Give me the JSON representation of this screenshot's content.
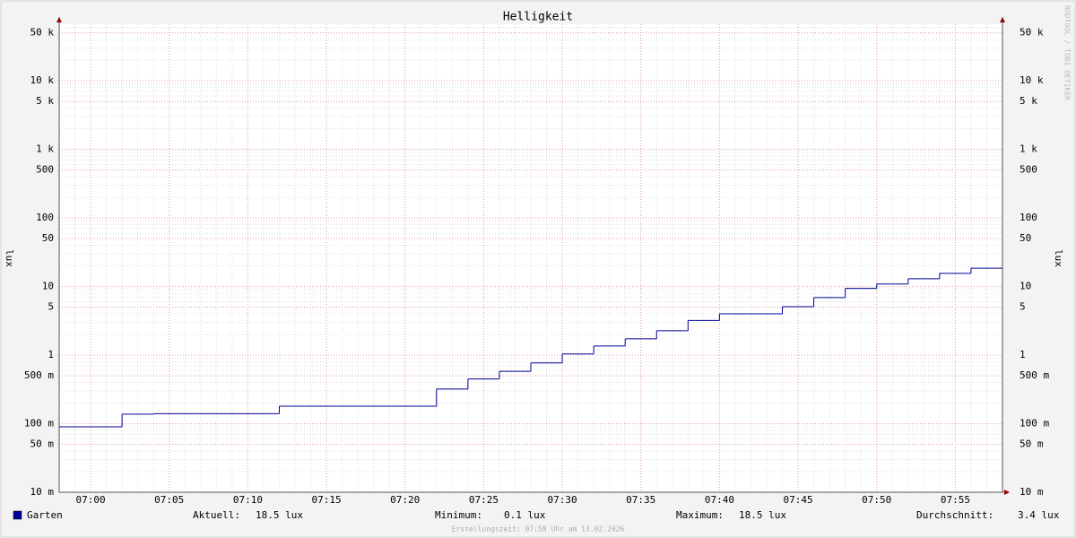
{
  "chart_data": {
    "type": "step",
    "title": "Helligkeit",
    "y_label": "lux",
    "watermark": "RRDTOOL / TOBI OETIKER",
    "log_y": true,
    "grid": true,
    "x": [
      "06:58",
      "07:02",
      "07:04",
      "07:12",
      "07:22",
      "07:24",
      "07:26",
      "07:28",
      "07:30",
      "07:32",
      "07:34",
      "07:36",
      "07:38",
      "07:40",
      "07:44",
      "07:46",
      "07:48",
      "07:50",
      "07:52",
      "07:54",
      "07:56"
    ],
    "xlim": [
      "06:58",
      "07:58"
    ],
    "xticks": [
      "07:00",
      "07:05",
      "07:10",
      "07:15",
      "07:20",
      "07:25",
      "07:30",
      "07:35",
      "07:40",
      "07:45",
      "07:50",
      "07:55"
    ],
    "ylim": [
      0.01,
      67000
    ],
    "yticks": [
      {
        "value": 0.01,
        "label": "10 m"
      },
      {
        "value": 0.05,
        "label": "50 m"
      },
      {
        "value": 0.1,
        "label": "100 m"
      },
      {
        "value": 0.5,
        "label": "500 m"
      },
      1,
      5,
      10,
      50,
      100,
      500,
      {
        "value": 1000,
        "label": "1 k"
      },
      {
        "value": 5000,
        "label": "5 k"
      },
      {
        "value": 10000,
        "label": "10 k"
      },
      {
        "value": 50000,
        "label": "50 k"
      }
    ],
    "series": [
      {
        "name": "Garten",
        "color": "#000099",
        "values": [
          0.09,
          0.138,
          0.14,
          0.18,
          0.32,
          0.45,
          0.58,
          0.77,
          1.04,
          1.36,
          1.73,
          2.27,
          3.2,
          4.0,
          5.1,
          6.9,
          9.4,
          10.9,
          13,
          15.6,
          18.5
        ]
      }
    ],
    "legend_stats": [
      {
        "label": "Aktuell:",
        "value": "18.5 lux"
      },
      {
        "label": "Minimum:",
        "value": "0.1 lux"
      },
      {
        "label": "Maximum:",
        "value": "18.5 lux"
      },
      {
        "label": "Durchschnitt:",
        "value": "3.4 lux"
      }
    ],
    "footer": "Erstellungszeit: 07:58 Uhr am 13.02.2026"
  }
}
